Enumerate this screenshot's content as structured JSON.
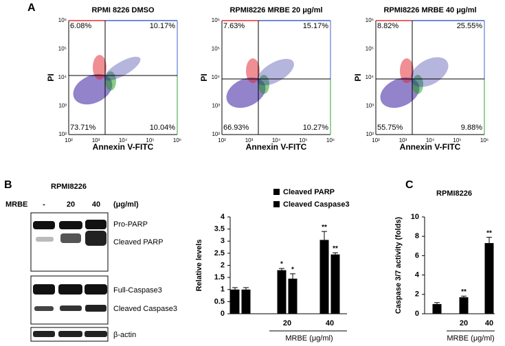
{
  "panel_labels": [
    "A",
    "B",
    "C"
  ],
  "flow": {
    "ylabel": "PI",
    "xlabel": "Annexin V-FITC",
    "ticks": [
      "10²",
      "10³",
      "10⁴",
      "10⁵",
      "10⁶"
    ],
    "plots": [
      {
        "title": "RPMI 8226 DMSO",
        "quadrants": [
          "6.08%",
          "10.17%",
          "73.71%",
          "10.04%"
        ]
      },
      {
        "title": "RPMI8226 MRBE 20 μg/ml",
        "quadrants": [
          "7.63%",
          "15.17%",
          "66.93%",
          "10.27%"
        ]
      },
      {
        "title": "RPMI8226 MRBE 40 μg/ml",
        "quadrants": [
          "8.82%",
          "25.55%",
          "55.75%",
          "9.88%"
        ]
      }
    ]
  },
  "blot": {
    "cell_line": "RPMI8226",
    "treatment": "MRBE",
    "doses": [
      "-",
      "20",
      "40"
    ],
    "unit": "(μg/ml)",
    "bands": [
      "Pro-PARP",
      "Cleaved PARP",
      "Full-Caspase3",
      "Cleaved Caspase3",
      "β-actin"
    ]
  },
  "chart_data": [
    {
      "type": "bar",
      "ylabel": "Relative levels",
      "xlabel": "MRBE (μg/ml)",
      "categories": [
        null,
        "20",
        "40"
      ],
      "ylim": [
        0,
        4
      ],
      "yticks": [
        0,
        0.5,
        1,
        1.5,
        2,
        2.5,
        3,
        3.5,
        4
      ],
      "series": [
        {
          "name": "Cleaved PARP",
          "color": "#000000",
          "values": [
            1,
            1.8,
            3.05
          ],
          "errors": [
            0.08,
            0.07,
            0.35
          ],
          "significance": [
            null,
            "*",
            "**"
          ]
        },
        {
          "name": "Cleaved Caspase3",
          "color": "#000000",
          "values": [
            1,
            1.45,
            2.45
          ],
          "errors": [
            0.08,
            0.2,
            0.07
          ],
          "significance": [
            null,
            "*",
            "**"
          ]
        }
      ]
    },
    {
      "type": "bar",
      "title": "RPMI8226",
      "ylabel": "Caspase 3/7 activity (folds)",
      "xlabel": "MRBE (μg/ml)",
      "categories": [
        null,
        "20",
        "40"
      ],
      "ylim": [
        0,
        10
      ],
      "yticks": [
        0,
        2,
        4,
        6,
        8,
        10
      ],
      "series": [
        {
          "color": "#000000",
          "values": [
            1,
            1.7,
            7.3
          ],
          "errors": [
            0.15,
            0.12,
            0.6
          ],
          "significance": [
            null,
            "**",
            "**"
          ]
        }
      ]
    }
  ]
}
